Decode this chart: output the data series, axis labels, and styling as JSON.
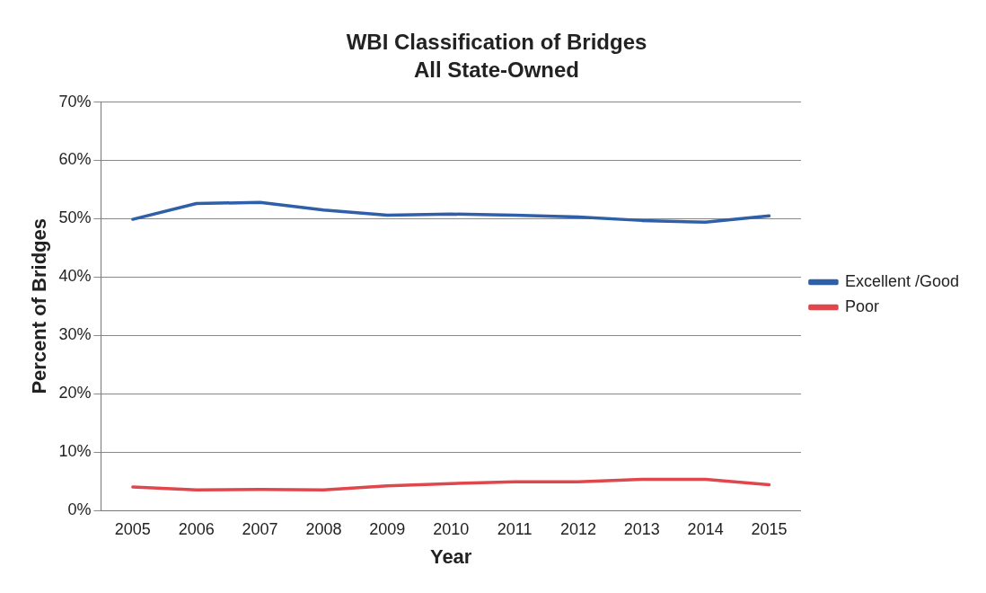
{
  "chart_data": {
    "type": "line",
    "title": "WBI Classification of Bridges",
    "subtitle": "All State-Owned",
    "xlabel": "Year",
    "ylabel": "Percent of Bridges",
    "categories": [
      "2005",
      "2006",
      "2007",
      "2008",
      "2009",
      "2010",
      "2011",
      "2012",
      "2013",
      "2014",
      "2015"
    ],
    "series": [
      {
        "name": "Excellent /Good",
        "color": "#2e5fa8",
        "values": [
          49.9,
          52.6,
          52.8,
          51.5,
          50.6,
          50.8,
          50.6,
          50.3,
          49.7,
          49.4,
          50.5
        ]
      },
      {
        "name": "Poor",
        "color": "#e0474c",
        "values": [
          4.0,
          3.5,
          3.6,
          3.5,
          4.2,
          4.6,
          4.9,
          4.9,
          5.3,
          5.3,
          4.4
        ]
      }
    ],
    "ylim": [
      0,
      70
    ],
    "yticks": [
      {
        "value": 0,
        "label": "0%"
      },
      {
        "value": 10,
        "label": "10%"
      },
      {
        "value": 20,
        "label": "20%"
      },
      {
        "value": 30,
        "label": "30%"
      },
      {
        "value": 40,
        "label": "40%"
      },
      {
        "value": 50,
        "label": "50%"
      },
      {
        "value": 60,
        "label": "60%"
      },
      {
        "value": 70,
        "label": "70%"
      }
    ],
    "grid": "y",
    "legend": "right",
    "marker": "none",
    "line_style": "solid"
  }
}
